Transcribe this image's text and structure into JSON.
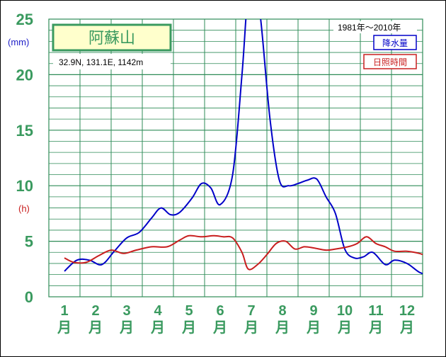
{
  "chart_data": {
    "type": "line",
    "station": "阿蘇山",
    "location": "32.9N, 131.1E, 1142m",
    "period": "1981年〜2010年",
    "y_unit_precip": "(mm)",
    "y_unit_sun": "(h)",
    "ylim": [
      0,
      25
    ],
    "yticks": [
      "0",
      "5",
      "10",
      "15",
      "20",
      "25"
    ],
    "months": [
      "1",
      "2",
      "3",
      "4",
      "5",
      "6",
      "7",
      "8",
      "9",
      "10",
      "11",
      "12"
    ],
    "month_suffix": "月",
    "grid": true,
    "legend_position": "top-right",
    "series": [
      {
        "name": "降水量",
        "color": "#0000c8",
        "x": [
          0.5,
          0.9,
          1.3,
          1.7,
          2.1,
          2.5,
          2.9,
          3.3,
          3.6,
          3.9,
          4.2,
          4.6,
          4.9,
          5.2,
          5.5,
          5.9,
          6.2,
          6.4,
          6.6,
          6.8,
          7.1,
          7.4,
          7.7,
          8.0,
          8.3,
          8.6,
          8.9,
          9.2,
          9.5,
          9.8,
          10.1,
          10.4,
          10.8,
          11.1,
          11.5,
          11.9,
          12.2,
          12.5
        ],
        "y": [
          2.3,
          3.3,
          3.3,
          2.9,
          4.1,
          5.3,
          5.8,
          7.1,
          8.0,
          7.4,
          7.6,
          8.9,
          10.2,
          9.8,
          8.3,
          11.0,
          20.0,
          27.5,
          28.0,
          25.0,
          16.0,
          10.5,
          10.0,
          10.2,
          10.5,
          10.6,
          9.0,
          7.5,
          4.3,
          3.5,
          3.6,
          4.0,
          2.9,
          3.3,
          3.0,
          2.2,
          2.0,
          2.3
        ]
      },
      {
        "name": "日照時間",
        "color": "#c81e1e",
        "x": [
          0.5,
          0.8,
          1.2,
          1.6,
          2.0,
          2.4,
          2.8,
          3.3,
          3.8,
          4.2,
          4.5,
          4.9,
          5.3,
          5.6,
          5.9,
          6.2,
          6.4,
          6.7,
          7.0,
          7.3,
          7.6,
          7.9,
          8.2,
          8.5,
          8.9,
          9.2,
          9.6,
          9.9,
          10.2,
          10.5,
          10.8,
          11.1,
          11.5,
          11.9,
          12.2,
          12.5
        ],
        "y": [
          3.5,
          3.1,
          3.1,
          3.7,
          4.2,
          3.9,
          4.2,
          4.5,
          4.5,
          5.1,
          5.5,
          5.4,
          5.5,
          5.4,
          5.3,
          4.0,
          2.5,
          2.9,
          3.8,
          4.8,
          5.0,
          4.3,
          4.5,
          4.4,
          4.2,
          4.3,
          4.5,
          4.8,
          5.4,
          4.8,
          4.5,
          4.1,
          4.1,
          3.9,
          3.6,
          3.5
        ]
      }
    ]
  }
}
